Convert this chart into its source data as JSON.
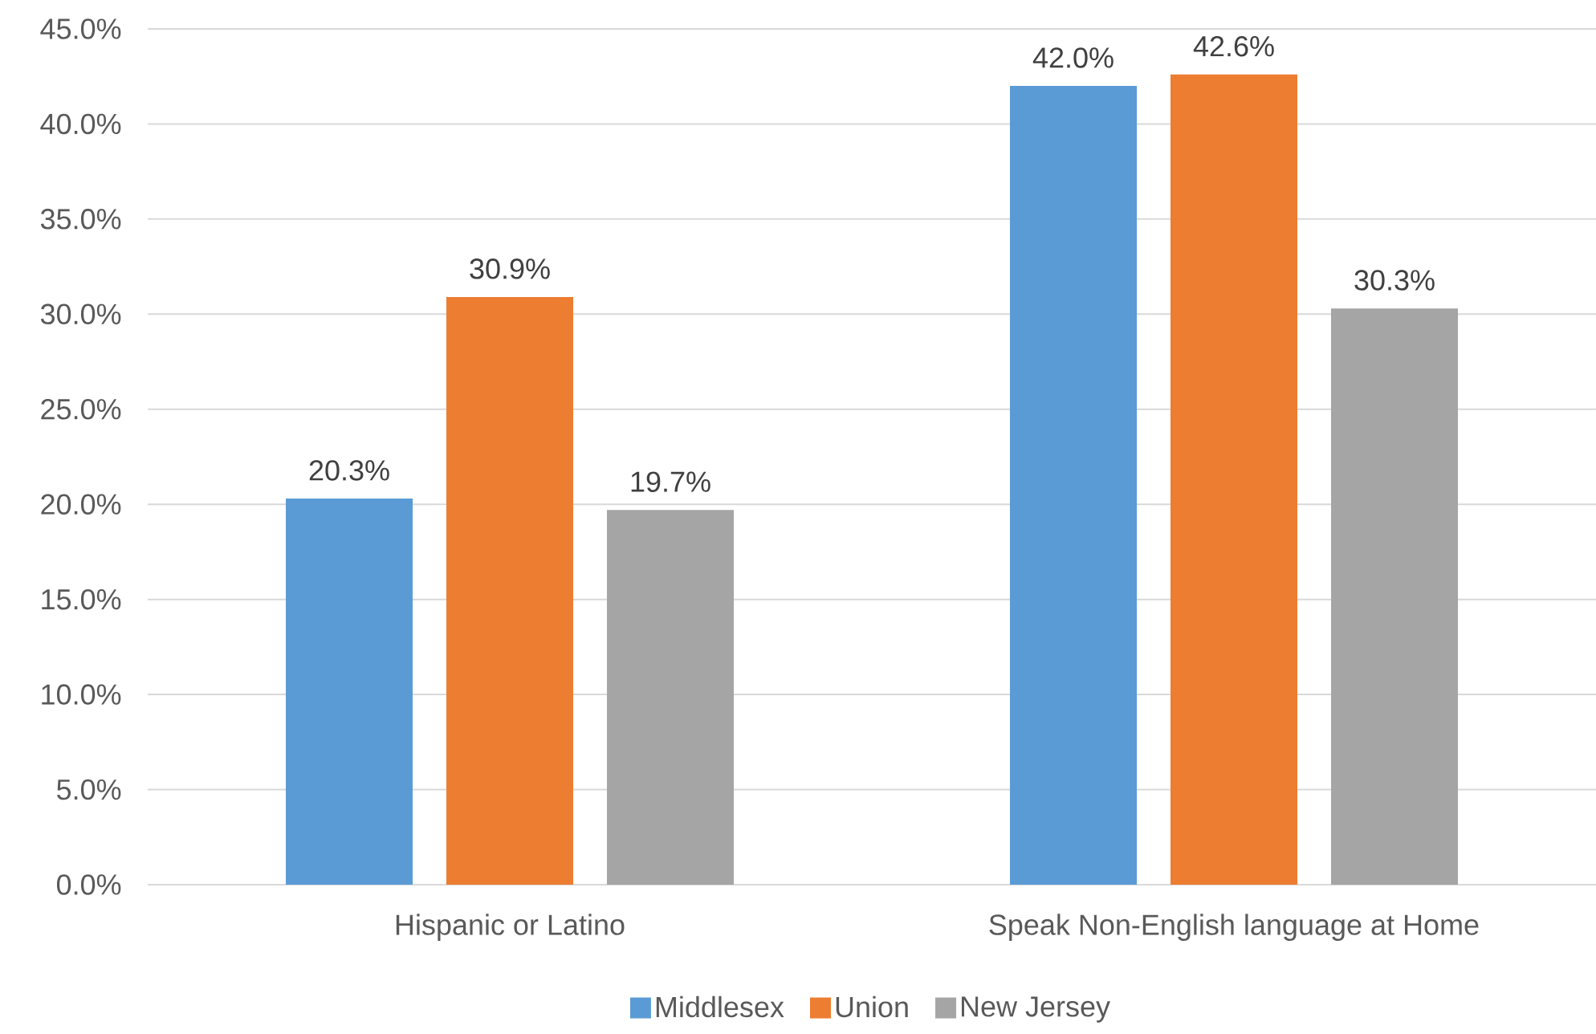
{
  "chart_data": {
    "type": "bar",
    "categories": [
      "Hispanic or Latino",
      "Speak Non-English language at Home"
    ],
    "series": [
      {
        "name": "Middlesex",
        "color": "#5b9bd5",
        "values": [
          20.3,
          42.0
        ],
        "value_labels": [
          "20.3%",
          "42.0%"
        ]
      },
      {
        "name": "Union",
        "color": "#ed7d31",
        "values": [
          30.9,
          42.6
        ],
        "value_labels": [
          "30.9%",
          "42.6%"
        ]
      },
      {
        "name": "New Jersey",
        "color": "#a5a5a5",
        "values": [
          19.7,
          30.3
        ],
        "value_labels": [
          "19.7%",
          "30.3%"
        ]
      }
    ],
    "ylim": [
      0,
      45
    ],
    "yticks": [
      {
        "value": 0,
        "label": "0.0%"
      },
      {
        "value": 5,
        "label": "5.0%"
      },
      {
        "value": 10,
        "label": "10.0%"
      },
      {
        "value": 15,
        "label": "15.0%"
      },
      {
        "value": 20,
        "label": "20.0%"
      },
      {
        "value": 25,
        "label": "25.0%"
      },
      {
        "value": 30,
        "label": "30.0%"
      },
      {
        "value": 35,
        "label": "35.0%"
      },
      {
        "value": 40,
        "label": "40.0%"
      },
      {
        "value": 45,
        "label": "45.0%"
      }
    ],
    "grid": "y",
    "legend": "bottom"
  }
}
